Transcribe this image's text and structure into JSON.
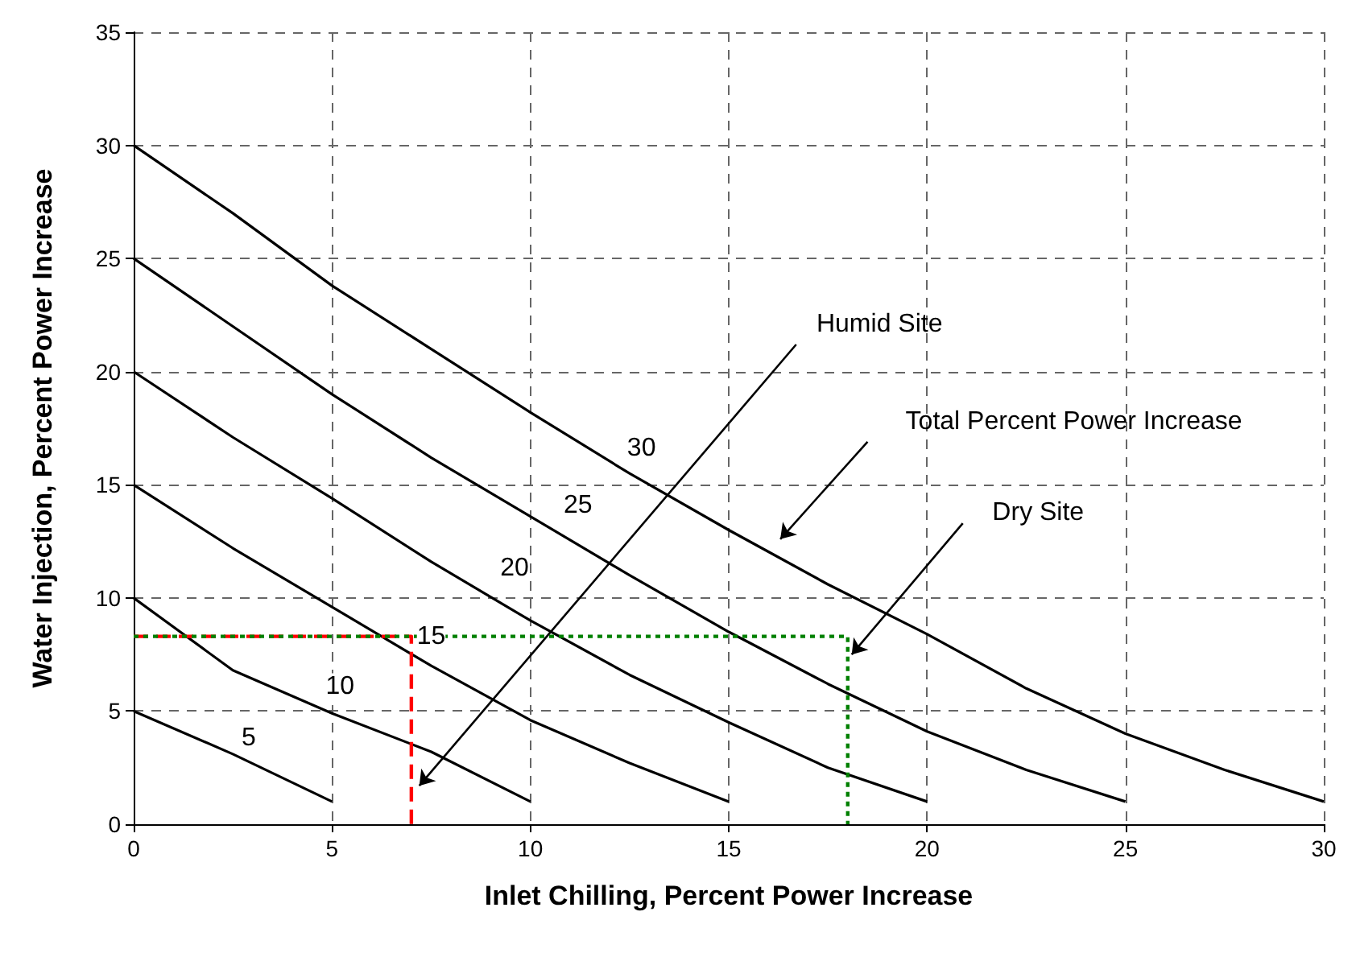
{
  "chart_data": {
    "type": "line",
    "xlabel": "Inlet Chilling, Percent Power Increase",
    "ylabel": "Water Injection, Percent Power Increase",
    "xlim": [
      0,
      30
    ],
    "xticks": [
      0,
      5,
      10,
      15,
      20,
      25,
      30
    ],
    "ylim": [
      0,
      35
    ],
    "yticks": [
      0,
      5,
      10,
      15,
      20,
      25,
      30,
      35
    ],
    "grid": true,
    "marker": "none",
    "series": [
      {
        "color": "#000000",
        "line_style": "solid",
        "x": [
          0,
          2.5,
          5
        ],
        "values": [
          5,
          3.1,
          1
        ]
      },
      {
        "color": "#000000",
        "line_style": "solid",
        "x": [
          0,
          2.5,
          5,
          7.5,
          10
        ],
        "values": [
          10,
          6.8,
          4.9,
          3.2,
          1
        ]
      },
      {
        "color": "#000000",
        "line_style": "solid",
        "x": [
          0,
          2.5,
          5,
          7.5,
          10,
          12.5,
          15
        ],
        "values": [
          15,
          12.2,
          9.6,
          7,
          4.6,
          2.7,
          1
        ]
      },
      {
        "color": "#000000",
        "line_style": "solid",
        "x": [
          0,
          2.5,
          5,
          7.5,
          10,
          12.5,
          15,
          17.5,
          20
        ],
        "values": [
          20,
          17.1,
          14.4,
          11.6,
          9,
          6.6,
          4.5,
          2.5,
          1
        ]
      },
      {
        "color": "#000000",
        "line_style": "solid",
        "x": [
          0,
          2.5,
          5,
          7.5,
          10,
          12.5,
          15,
          17.5,
          20,
          22.5,
          25
        ],
        "values": [
          25,
          22,
          19,
          16.2,
          13.6,
          11,
          8.5,
          6.2,
          4.1,
          2.4,
          1
        ]
      },
      {
        "color": "#000000",
        "line_style": "solid",
        "x": [
          0,
          2.5,
          5,
          7.5,
          10,
          12.5,
          15,
          17.5,
          20,
          22.5,
          25,
          27.5,
          30
        ],
        "values": [
          30,
          27,
          23.8,
          21,
          18.2,
          15.5,
          13,
          10.6,
          8.4,
          6,
          4,
          2.4,
          1
        ]
      },
      {
        "color": "#ff0000",
        "line_style": "dashed",
        "x": [
          0,
          7,
          7
        ],
        "values": [
          8.3,
          8.3,
          0
        ]
      },
      {
        "color": "#008000",
        "line_style": "dotted",
        "x": [
          0,
          18,
          18
        ],
        "values": [
          8.3,
          8.3,
          0
        ]
      }
    ],
    "annotations": [
      {
        "text": "5",
        "x": 2.9,
        "y": 3.8
      },
      {
        "text": "10",
        "x": 5.2,
        "y": 6.1
      },
      {
        "text": "15",
        "x": 7.5,
        "y": 8.3
      },
      {
        "text": "20",
        "x": 9.6,
        "y": 11.3
      },
      {
        "text": "25",
        "x": 11.2,
        "y": 14.1
      },
      {
        "text": "30",
        "x": 12.8,
        "y": 16.6
      },
      "Humid Site",
      "Total Percent Power Increase",
      {
        "text": "Dry Site",
        "x": 18.1,
        "y": 7.5
      }
    ]
  }
}
